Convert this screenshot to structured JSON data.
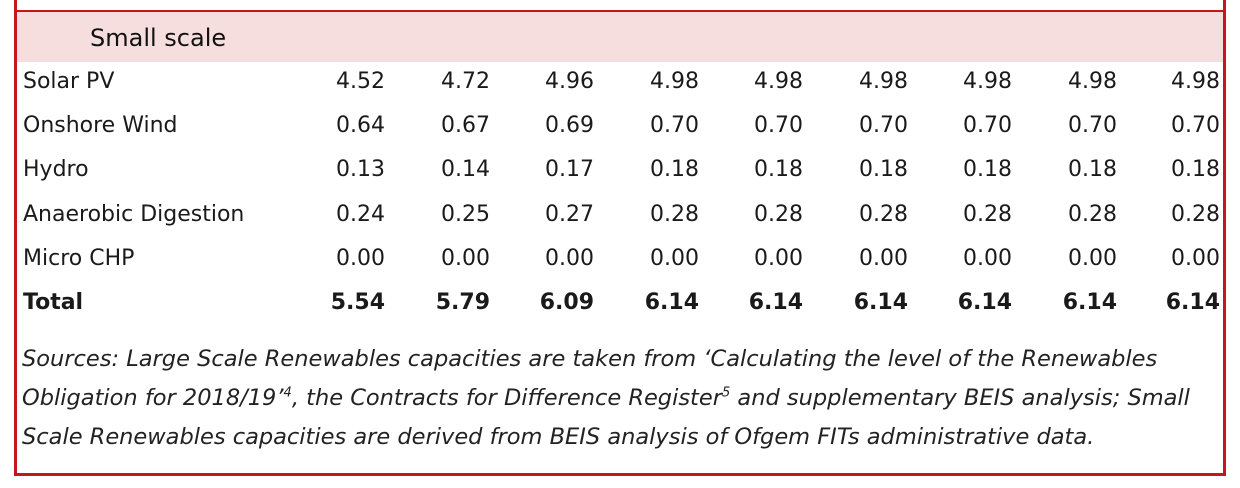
{
  "section_title": "Small scale",
  "rows": [
    {
      "label": "Solar PV",
      "values": [
        "4.52",
        "4.72",
        "4.96",
        "4.98",
        "4.98",
        "4.98",
        "4.98",
        "4.98",
        "4.98"
      ]
    },
    {
      "label": "Onshore Wind",
      "values": [
        "0.64",
        "0.67",
        "0.69",
        "0.70",
        "0.70",
        "0.70",
        "0.70",
        "0.70",
        "0.70"
      ]
    },
    {
      "label": "Hydro",
      "values": [
        "0.13",
        "0.14",
        "0.17",
        "0.18",
        "0.18",
        "0.18",
        "0.18",
        "0.18",
        "0.18"
      ]
    },
    {
      "label": "Anaerobic Digestion",
      "values": [
        "0.24",
        "0.25",
        "0.27",
        "0.28",
        "0.28",
        "0.28",
        "0.28",
        "0.28",
        "0.28"
      ]
    },
    {
      "label": "Micro CHP",
      "values": [
        "0.00",
        "0.00",
        "0.00",
        "0.00",
        "0.00",
        "0.00",
        "0.00",
        "0.00",
        "0.00"
      ]
    }
  ],
  "total": {
    "label": "Total",
    "values": [
      "5.54",
      "5.79",
      "6.09",
      "6.14",
      "6.14",
      "6.14",
      "6.14",
      "6.14",
      "6.14"
    ]
  },
  "sources": {
    "line1": "Sources: Large Scale Renewables capacities are taken from ‘Calculating the level of the Renewables",
    "line2_a": "Obligation for 2018/19’",
    "line2_sup1": "4",
    "line2_b": ", the Contracts for Difference Register",
    "line2_sup2": "5",
    "line2_c": " and supplementary BEIS analysis; Small",
    "line3": "Scale Renewables capacities are derived from BEIS analysis of Ofgem FITs administrative data."
  }
}
